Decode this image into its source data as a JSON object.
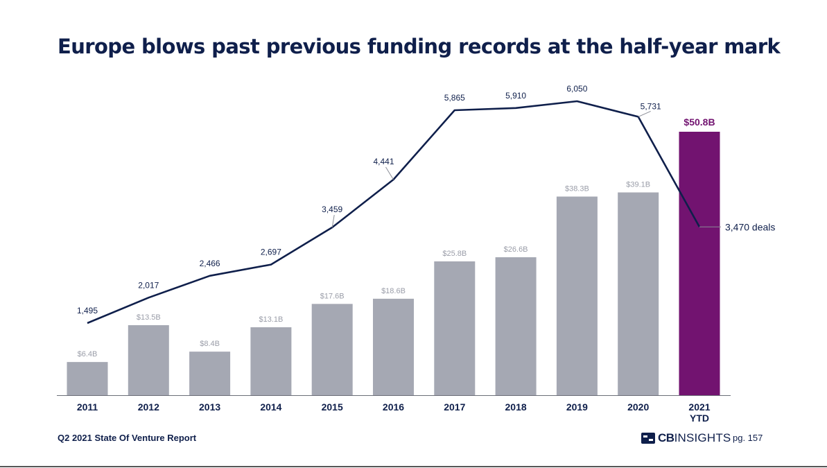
{
  "title": "Europe blows past previous funding records at the half-year mark",
  "footer": {
    "source": "Q2 2021 State Of Venture Report",
    "logo_bold": "CB",
    "logo_light": "INSIGHTS",
    "page": "pg. 157"
  },
  "colors": {
    "title": "#0f1f4b",
    "bar": "#a5a8b3",
    "highlight_bar": "#721370",
    "line": "#0f1f4b",
    "bar_label": "#9a9da8"
  },
  "chart_data": {
    "type": "bar",
    "categories": [
      "2011",
      "2012",
      "2013",
      "2014",
      "2015",
      "2016",
      "2017",
      "2018",
      "2019",
      "2020",
      "2021 YTD"
    ],
    "series": [
      {
        "type": "bar",
        "values": [
          6.4,
          13.5,
          8.4,
          13.1,
          17.6,
          18.6,
          25.8,
          26.6,
          38.3,
          39.1,
          50.8
        ],
        "labels": [
          "$6.4B",
          "$13.5B",
          "$8.4B",
          "$13.1B",
          "$17.6B",
          "$18.6B",
          "$25.8B",
          "$26.6B",
          "$38.3B",
          "$39.1B",
          "$50.8B"
        ],
        "highlight_index": 10
      },
      {
        "type": "line",
        "values": [
          1495,
          2017,
          2466,
          2697,
          3459,
          4441,
          5865,
          5910,
          6050,
          5731,
          3470
        ],
        "labels": [
          "1,495",
          "2,017",
          "2,466",
          "2,697",
          "3,459",
          "4,441",
          "5,865",
          "5,910",
          "6,050",
          "5,731",
          "3,470 deals"
        ]
      }
    ],
    "xlabel": "",
    "ylabel": "",
    "legend": "none",
    "grid": false
  }
}
